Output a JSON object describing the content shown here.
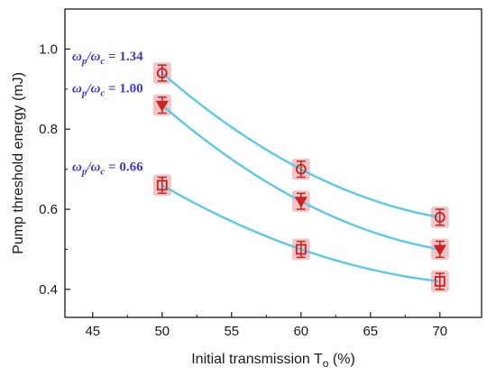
{
  "chart_data": {
    "type": "scatter",
    "title": "",
    "xlabel": "Initial transmission T",
    "xlabel_subscript": "o",
    "xlabel_unit": " (%)",
    "ylabel": "Pump threshold energy  (mJ)",
    "xlim": [
      43,
      73
    ],
    "ylim": [
      0.33,
      1.1
    ],
    "x_ticks": [
      45,
      50,
      55,
      60,
      65,
      70
    ],
    "x_tick_labels": [
      "45",
      "50",
      "55",
      "60",
      "65",
      "70"
    ],
    "y_ticks": [
      0.4,
      0.6,
      0.8,
      1.0
    ],
    "y_tick_labels": [
      "0.4",
      "0.6",
      "0.8",
      "1.0"
    ],
    "grid": false,
    "legend": "none",
    "colors": {
      "fit_line": "#5bc8ec",
      "marker": "#cc2222",
      "error_halo": "#f2c6c6",
      "annotation": "#3a3acc",
      "axis": "#1a1a1a"
    },
    "x": [
      50,
      60,
      70
    ],
    "series": [
      {
        "marker": "circle",
        "values": [
          0.94,
          0.7,
          0.58
        ],
        "error": 0.02,
        "annotation": {
          "omega_p": "ω",
          "sub_p": "p",
          "slash": "/",
          "omega_c": "ω",
          "sub_c": "c",
          "value": " = 1.34"
        }
      },
      {
        "marker": "triangle-down",
        "values": [
          0.86,
          0.62,
          0.5
        ],
        "error": 0.02,
        "annotation": {
          "omega_p": "ω",
          "sub_p": "p",
          "slash": "/",
          "omega_c": "ω",
          "sub_c": "c",
          "value": " = 1.00"
        }
      },
      {
        "marker": "square",
        "values": [
          0.66,
          0.5,
          0.42
        ],
        "error": 0.02,
        "annotation": {
          "omega_p": "ω",
          "sub_p": "p",
          "slash": "/",
          "omega_c": "ω",
          "sub_c": "c",
          "value": " = 0.66"
        }
      }
    ]
  }
}
